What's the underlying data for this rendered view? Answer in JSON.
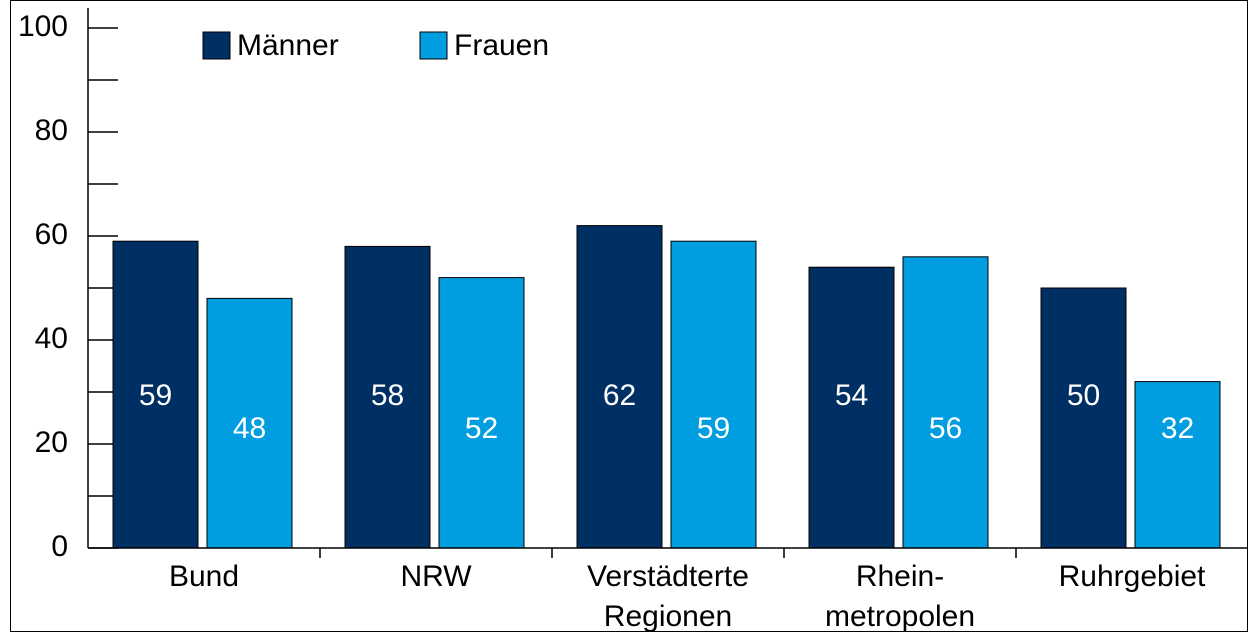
{
  "chart_data": {
    "type": "bar",
    "categories": [
      [
        "Bund"
      ],
      [
        "NRW"
      ],
      [
        "Verstädterte",
        "Regionen"
      ],
      [
        "Rhein-",
        "metropolen"
      ],
      [
        "Ruhrgebiet"
      ]
    ],
    "series": [
      {
        "name": "Männer",
        "color": "#003063",
        "values": [
          59,
          58,
          62,
          54,
          50
        ]
      },
      {
        "name": "Frauen",
        "color": "#009ee0",
        "values": [
          48,
          52,
          59,
          56,
          32
        ]
      }
    ],
    "ylim": [
      0,
      100
    ],
    "yticks": [
      0,
      20,
      40,
      60,
      80,
      100
    ],
    "minor_yticks": [
      10,
      30,
      50,
      70,
      90
    ],
    "legend": "top-left",
    "value_label_color": "#ffffff"
  }
}
